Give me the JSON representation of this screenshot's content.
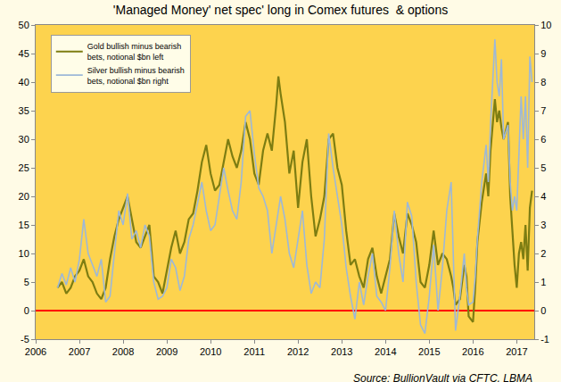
{
  "chart_data": {
    "type": "line",
    "title": "'Managed Money' net spec' long in Comex futures  & options",
    "annotations": [
      "Source: BullionVault via CFTC, LBMA"
    ],
    "x": [
      2006.5,
      2006.6,
      2006.7,
      2006.8,
      2006.9,
      2007.0,
      2007.1,
      2007.2,
      2007.3,
      2007.4,
      2007.5,
      2007.6,
      2007.7,
      2007.8,
      2007.9,
      2008.0,
      2008.1,
      2008.2,
      2008.3,
      2008.4,
      2008.5,
      2008.6,
      2008.7,
      2008.8,
      2008.9,
      2009.0,
      2009.1,
      2009.2,
      2009.3,
      2009.4,
      2009.5,
      2009.6,
      2009.7,
      2009.8,
      2009.9,
      2010.0,
      2010.1,
      2010.2,
      2010.3,
      2010.4,
      2010.5,
      2010.6,
      2010.7,
      2010.8,
      2010.9,
      2011.0,
      2011.1,
      2011.2,
      2011.3,
      2011.4,
      2011.5,
      2011.55,
      2011.6,
      2011.7,
      2011.8,
      2011.9,
      2012.0,
      2012.1,
      2012.2,
      2012.3,
      2012.4,
      2012.5,
      2012.6,
      2012.7,
      2012.8,
      2012.9,
      2013.0,
      2013.1,
      2013.2,
      2013.3,
      2013.4,
      2013.5,
      2013.6,
      2013.7,
      2013.8,
      2013.9,
      2014.0,
      2014.1,
      2014.2,
      2014.3,
      2014.4,
      2014.5,
      2014.6,
      2014.7,
      2014.8,
      2014.9,
      2015.0,
      2015.1,
      2015.2,
      2015.3,
      2015.4,
      2015.5,
      2015.55,
      2015.6,
      2015.7,
      2015.8,
      2015.85,
      2015.9,
      2016.0,
      2016.05,
      2016.1,
      2016.2,
      2016.3,
      2016.35,
      2016.4,
      2016.5,
      2016.55,
      2016.6,
      2016.65,
      2016.7,
      2016.8,
      2016.85,
      2016.9,
      2016.95,
      2017.0,
      2017.05,
      2017.1,
      2017.15,
      2017.2,
      2017.25,
      2017.3,
      2017.35
    ],
    "series": [
      {
        "name": "Silver bullish minus bearish\nbets, notional $bn right",
        "color": "#9db8d8",
        "axis": "y2",
        "values": [
          0.8,
          1.3,
          0.9,
          1.5,
          1.0,
          1.8,
          3.2,
          2.0,
          1.6,
          1.2,
          1.8,
          0.3,
          0.5,
          2.0,
          3.5,
          3.0,
          4.1,
          2.5,
          2.8,
          2.2,
          3.0,
          2.6,
          1.0,
          0.4,
          0.5,
          0.8,
          1.8,
          1.5,
          0.7,
          1.2,
          2.5,
          3.0,
          3.8,
          4.5,
          3.5,
          2.8,
          3.0,
          4.0,
          5.0,
          4.2,
          3.5,
          3.2,
          4.5,
          6.8,
          7.0,
          5.5,
          4.3,
          4.0,
          3.5,
          2.0,
          3.0,
          3.5,
          4.0,
          3.2,
          2.0,
          1.5,
          2.5,
          3.5,
          1.6,
          0.6,
          1.0,
          0.8,
          2.5,
          6.2,
          5.0,
          4.0,
          3.0,
          1.5,
          0.5,
          -0.3,
          1.0,
          0.2,
          1.2,
          2.0,
          0.5,
          0.3,
          0.0,
          1.5,
          3.5,
          2.0,
          1.0,
          3.8,
          3.3,
          1.0,
          -0.5,
          -0.8,
          0.5,
          2.3,
          0.0,
          1.5,
          3.5,
          4.5,
          2.0,
          -0.7,
          0.5,
          2.0,
          0.8,
          0.2,
          0.3,
          1.2,
          2.5,
          4.5,
          5.8,
          4.5,
          6.5,
          9.5,
          8.0,
          7.5,
          8.8,
          6.0,
          6.5,
          4.5,
          3.5,
          4.0,
          3.5,
          5.5,
          7.5,
          6.0,
          7.5,
          5.0,
          8.9,
          8.0
        ]
      },
      {
        "name": "Gold bullish minus bearish\nbets, notional $bn left",
        "color": "#7d7d12",
        "values": [
          4,
          5,
          3,
          4,
          6,
          7,
          9,
          6,
          5,
          3,
          2,
          4,
          9,
          13,
          16,
          18,
          20,
          16,
          12,
          11,
          13,
          15,
          6,
          5,
          3,
          7,
          11,
          14,
          10,
          12,
          16,
          17,
          21,
          26,
          29,
          24,
          21,
          22,
          26,
          30,
          27,
          25,
          28,
          33,
          30,
          24,
          22,
          28,
          31,
          28,
          36,
          41,
          38,
          33,
          24,
          28,
          18,
          26,
          30,
          20,
          13,
          16,
          20,
          30,
          31,
          25,
          22,
          14,
          8,
          9,
          6,
          4,
          9,
          11,
          6,
          3,
          6,
          9,
          17,
          13,
          10,
          17,
          15,
          12,
          5,
          4,
          8,
          14,
          8,
          10,
          9,
          6,
          4,
          1,
          2,
          8,
          6,
          -1,
          -2,
          4,
          12,
          19,
          24,
          20,
          28,
          37,
          33,
          35,
          32,
          30,
          33,
          20,
          14,
          8,
          4,
          10,
          12,
          9,
          15,
          7,
          18,
          21
        ]
      }
    ],
    "xlim": [
      2006,
      2017.4
    ],
    "xticks": [
      2006,
      2007,
      2008,
      2009,
      2010,
      2011,
      2012,
      2013,
      2014,
      2015,
      2016,
      2017
    ],
    "ylim": [
      -5,
      50
    ],
    "yticks": [
      -5,
      0,
      5,
      10,
      15,
      20,
      25,
      30,
      35,
      40,
      45,
      50
    ],
    "y2lim": [
      -1,
      10
    ],
    "y2ticks": [
      -1,
      0,
      1,
      2,
      3,
      4,
      5,
      6,
      7,
      8,
      9,
      10
    ],
    "grid": false,
    "legend": "upper left"
  }
}
